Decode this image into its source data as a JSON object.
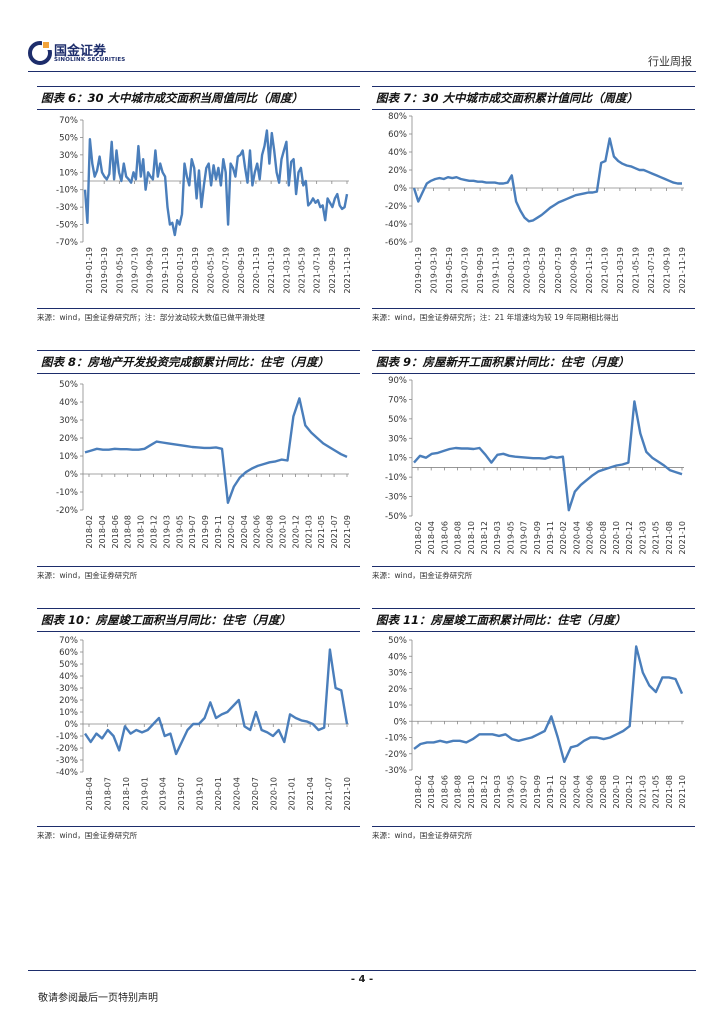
{
  "header": {
    "company_cn": "国金证券",
    "company_en": "SINOLINK SECURITIES",
    "report_type": "行业周报"
  },
  "charts": [
    {
      "title": "图表 6：30 大中城市成交面积当周值同比（周度）",
      "source": "来源：wind，国金证券研究所；注：部分波动较大数值已做平滑处理"
    },
    {
      "title": "图表 7：30 大中城市成交面积累计值同比（周度）",
      "source": "来源：wind，国金证券研究所；注：21 年增速均为较 19 年同期相比得出"
    },
    {
      "title": "图表 8：房地产开发投资完成额累计同比：住宅（月度）",
      "source": "来源：wind，国金证券研究所"
    },
    {
      "title": "图表 9：房屋新开工面积累计同比：住宅（月度）",
      "source": "来源：wind，国金证券研究所"
    },
    {
      "title": "图表 10：房屋竣工面积当月同比：住宅（月度）",
      "source": "来源：wind，国金证券研究所"
    },
    {
      "title": "图表 11：房屋竣工面积累计同比：住宅（月度）",
      "source": "来源：wind，国金证券研究所"
    }
  ],
  "chart_data": [
    {
      "type": "line",
      "title": "图表 6：30 大中城市成交面积当周值同比（周度）",
      "ylim": [
        -70,
        70
      ],
      "yticks": [
        -70,
        -50,
        -30,
        -10,
        10,
        30,
        50,
        70
      ],
      "ytick_labels": [
        "-70%",
        "-50%",
        "-30%",
        "-10%",
        "10%",
        "30%",
        "50%",
        "70%"
      ],
      "xtick_labels": [
        "2019-01-19",
        "2019-03-19",
        "2019-05-19",
        "2019-07-19",
        "2019-09-19",
        "2019-11-19",
        "2020-01-19",
        "2020-03-19",
        "2020-05-19",
        "2020-07-19",
        "2020-09-19",
        "2020-11-19",
        "2021-01-19",
        "2021-03-19",
        "2021-05-19",
        "2021-07-19",
        "2021-09-19",
        "2021-11-19"
      ],
      "color": "#4a7ebb",
      "series": [
        {
          "values": [
            -10,
            -48,
            48,
            20,
            5,
            12,
            28,
            10,
            5,
            2,
            8,
            45,
            2,
            35,
            10,
            0,
            20,
            5,
            2,
            -2,
            10,
            2,
            40,
            5,
            25,
            -10,
            10,
            5,
            2,
            35,
            5,
            20,
            10,
            5,
            -30,
            -50,
            -48,
            -62,
            -45,
            -50,
            -38,
            20,
            5,
            -5,
            25,
            15,
            -20,
            12,
            -30,
            -5,
            15,
            20,
            -5,
            18,
            2,
            15,
            -5,
            25,
            10,
            -50,
            20,
            15,
            5,
            28,
            30,
            35,
            15,
            -2,
            35,
            -5,
            10,
            20,
            2,
            30,
            40,
            58,
            20,
            55,
            35,
            10,
            -2,
            25,
            35,
            45,
            -5,
            22,
            25,
            -15,
            10,
            15,
            -5,
            0,
            -28,
            -25,
            -20,
            -25,
            -22,
            -30,
            -28,
            -45,
            -20,
            -25,
            -30,
            -20,
            -15,
            -28,
            -32,
            -30,
            -15
          ]
        }
      ]
    },
    {
      "type": "line",
      "title": "图表 7：30 大中城市成交面积累计值同比（周度）",
      "ylim": [
        -60,
        80
      ],
      "yticks": [
        -60,
        -40,
        -20,
        0,
        20,
        40,
        60,
        80
      ],
      "ytick_labels": [
        "-60%",
        "-40%",
        "-20%",
        "0%",
        "20%",
        "40%",
        "60%",
        "80%"
      ],
      "xtick_labels": [
        "2019-01-19",
        "2019-03-19",
        "2019-05-19",
        "2019-07-19",
        "2019-09-19",
        "2019-11-19",
        "2020-01-19",
        "2020-03-19",
        "2020-05-19",
        "2020-07-19",
        "2020-09-19",
        "2020-11-19",
        "2021-01-19",
        "2021-03-19",
        "2021-05-19",
        "2021-07-19",
        "2021-09-19",
        "2021-11-19"
      ],
      "color": "#4a7ebb",
      "series": [
        {
          "values": [
            0,
            -15,
            -5,
            5,
            8,
            10,
            11,
            10,
            12,
            11,
            12,
            10,
            9,
            8,
            8,
            7,
            7,
            6,
            6,
            6,
            5,
            5,
            6,
            14,
            -15,
            -25,
            -33,
            -37,
            -36,
            -33,
            -30,
            -26,
            -22,
            -19,
            -16,
            -14,
            -12,
            -10,
            -8,
            -7,
            -6,
            -5,
            -5,
            -4,
            28,
            30,
            55,
            35,
            30,
            27,
            25,
            24,
            22,
            20,
            20,
            18,
            16,
            14,
            12,
            10,
            8,
            6,
            5,
            5
          ]
        }
      ]
    },
    {
      "type": "line",
      "title": "图表 8：房地产开发投资完成额累计同比：住宅（月度）",
      "ylim": [
        -20,
        50
      ],
      "yticks": [
        -20,
        -10,
        0,
        10,
        20,
        30,
        40,
        50
      ],
      "ytick_labels": [
        "-20%",
        "-10%",
        "0%",
        "10%",
        "20%",
        "30%",
        "40%",
        "50%"
      ],
      "xtick_labels": [
        "2018-02",
        "2018-04",
        "2018-06",
        "2018-08",
        "2018-10",
        "2018-12",
        "2019-03",
        "2019-05",
        "2019-07",
        "2019-09",
        "2019-11",
        "2020-02",
        "2020-04",
        "2020-06",
        "2020-08",
        "2020-10",
        "2020-12",
        "2021-03",
        "2021-05",
        "2021-07",
        "2021-09"
      ],
      "color": "#4a7ebb",
      "series": [
        {
          "values": [
            12,
            13,
            14,
            13.5,
            13.5,
            14,
            13.8,
            13.8,
            13.5,
            13.5,
            14,
            16,
            18,
            17.5,
            17,
            16.5,
            16,
            15.5,
            15,
            14.8,
            14.5,
            14.5,
            14.8,
            14,
            -16,
            -7,
            -2,
            1,
            3,
            4.5,
            5.5,
            6.5,
            7,
            8,
            7.5,
            32,
            42,
            27,
            23,
            20,
            17,
            15,
            13,
            11,
            9.5
          ]
        }
      ]
    },
    {
      "type": "line",
      "title": "图表 9：房屋新开工面积累计同比：住宅（月度）",
      "ylim": [
        -50,
        90
      ],
      "yticks": [
        -50,
        -30,
        -10,
        10,
        30,
        50,
        70,
        90
      ],
      "ytick_labels": [
        "-50%",
        "-30%",
        "-10%",
        "10%",
        "30%",
        "50%",
        "70%",
        "90%"
      ],
      "xtick_labels": [
        "2018-02",
        "2018-04",
        "2018-06",
        "2018-08",
        "2018-10",
        "2018-12",
        "2019-03",
        "2019-05",
        "2019-07",
        "2019-09",
        "2019-11",
        "2020-02",
        "2020-04",
        "2020-06",
        "2020-08",
        "2020-10",
        "2020-12",
        "2021-03",
        "2021-05",
        "2021-08",
        "2021-10"
      ],
      "color": "#4a7ebb",
      "series": [
        {
          "values": [
            5,
            12,
            10,
            14,
            15,
            17,
            19,
            20,
            19.5,
            19.5,
            19,
            20,
            13,
            5,
            13,
            14,
            12,
            11,
            10.5,
            10,
            9.5,
            9.5,
            9,
            11,
            10,
            11,
            -44,
            -25,
            -18,
            -13,
            -8,
            -4,
            -2,
            0,
            2,
            3,
            5,
            68,
            35,
            16,
            10,
            6,
            2,
            -3,
            -5,
            -7
          ]
        }
      ]
    },
    {
      "type": "line",
      "title": "图表 10：房屋竣工面积当月同比：住宅（月度）",
      "ylim": [
        -40,
        70
      ],
      "yticks": [
        -40,
        -30,
        -20,
        -10,
        0,
        10,
        20,
        30,
        40,
        50,
        60,
        70
      ],
      "ytick_labels": [
        "-40%",
        "-30%",
        "-20%",
        "-10%",
        "0%",
        "10%",
        "20%",
        "30%",
        "40%",
        "50%",
        "60%",
        "70%"
      ],
      "xtick_labels": [
        "2018-04",
        "2018-07",
        "2018-10",
        "2019-01",
        "2019-04",
        "2019-07",
        "2019-10",
        "2020-01",
        "2020-04",
        "2020-07",
        "2020-10",
        "2021-01",
        "2021-04",
        "2021-07",
        "2021-10"
      ],
      "color": "#4a7ebb",
      "series": [
        {
          "values": [
            -8,
            -15,
            -8,
            -12,
            -5,
            -10,
            -22,
            -2,
            -8,
            -5,
            -7,
            -5,
            0,
            5,
            -10,
            -8,
            -25,
            -15,
            -5,
            0,
            0,
            5,
            18,
            5,
            8,
            10,
            15,
            20,
            -2,
            -5,
            10,
            -5,
            -7,
            -10,
            -5,
            -15,
            8,
            5,
            3,
            2,
            0,
            -5,
            -3,
            62,
            30,
            28,
            0
          ]
        }
      ]
    },
    {
      "type": "line",
      "title": "图表 11：房屋竣工面积累计同比：住宅（月度）",
      "ylim": [
        -30,
        50
      ],
      "yticks": [
        -30,
        -20,
        -10,
        0,
        10,
        20,
        30,
        40,
        50
      ],
      "ytick_labels": [
        "-30%",
        "-20%",
        "-10%",
        "0%",
        "10%",
        "20%",
        "30%",
        "40%",
        "50%"
      ],
      "xtick_labels": [
        "2018-02",
        "2018-04",
        "2018-06",
        "2018-08",
        "2018-10",
        "2018-12",
        "2019-03",
        "2019-05",
        "2019-07",
        "2019-09",
        "2019-11",
        "2020-02",
        "2020-04",
        "2020-06",
        "2020-08",
        "2020-10",
        "2020-12",
        "2021-03",
        "2021-05",
        "2021-08",
        "2021-10"
      ],
      "color": "#4a7ebb",
      "series": [
        {
          "values": [
            -17,
            -14,
            -13,
            -13,
            -12,
            -13,
            -12,
            -12,
            -13,
            -11,
            -8,
            -8,
            -8,
            -9,
            -8,
            -11,
            -12,
            -11,
            -10,
            -8,
            -6,
            3,
            -10,
            -25,
            -16,
            -15,
            -12,
            -10,
            -10,
            -11,
            -10,
            -8,
            -6,
            -3,
            46,
            30,
            22,
            18,
            27,
            27,
            26,
            17
          ]
        }
      ]
    }
  ],
  "footer": {
    "page_number": "- 4 -",
    "disclaimer": "敬请参阅最后一页特别声明"
  }
}
